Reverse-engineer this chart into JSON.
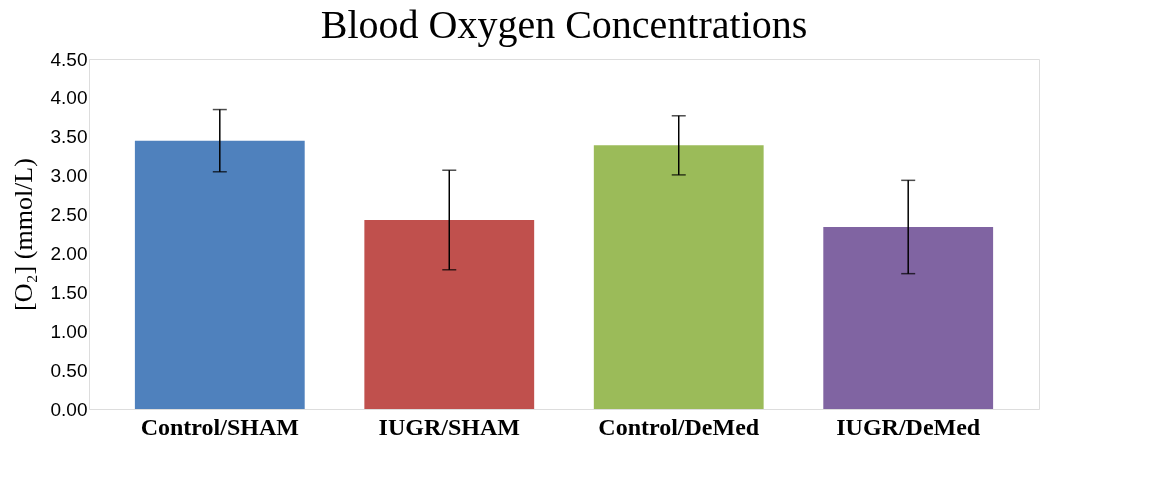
{
  "chart_data": {
    "type": "bar",
    "title": "Blood Oxygen Concentrations",
    "ylabel": "[O₂] (mmol/L)",
    "categories": [
      "Control/SHAM",
      "IUGR/SHAM",
      "Control/DeMed",
      "IUGR/DeMed"
    ],
    "values": [
      3.45,
      2.43,
      3.39,
      2.34
    ],
    "errors": [
      0.4,
      0.64,
      0.38,
      0.6
    ],
    "colors": [
      "#4f81bd",
      "#c0504d",
      "#9bbb59",
      "#8064a2"
    ],
    "ylim": [
      0,
      4.5
    ],
    "yticks": [
      {
        "value": 0,
        "label": "0.00"
      },
      {
        "value": 0.5,
        "label": "0.50"
      },
      {
        "value": 1,
        "label": "1.00"
      },
      {
        "value": 1.5,
        "label": "1.50"
      },
      {
        "value": 2,
        "label": "2.00"
      },
      {
        "value": 2.5,
        "label": "2.50"
      },
      {
        "value": 3,
        "label": "3.00"
      },
      {
        "value": 3.5,
        "label": "3.50"
      },
      {
        "value": 4,
        "label": "4.00"
      },
      {
        "value": 4.5,
        "label": "4.50"
      }
    ],
    "grid": false,
    "legend": false
  }
}
